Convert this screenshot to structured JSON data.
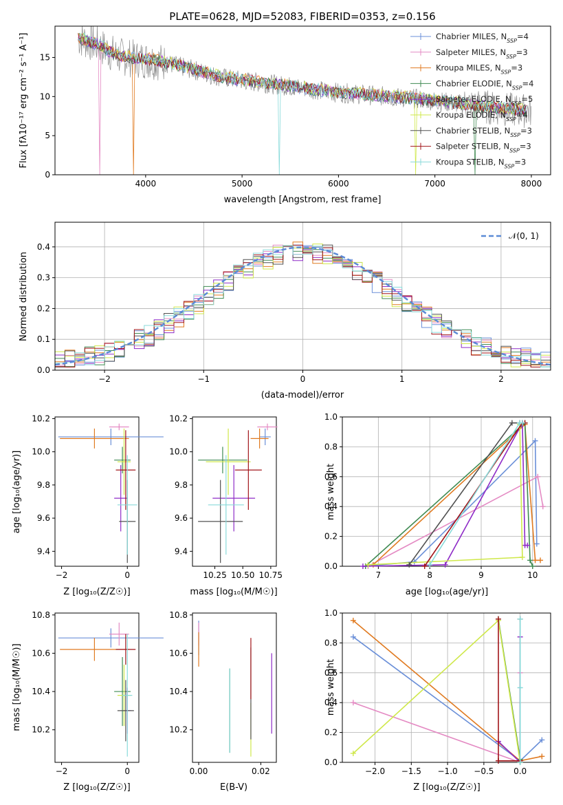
{
  "colors": {
    "chabrier_miles": "#6a8fd8",
    "salpeter_miles": "#e48ac3",
    "kroupa_miles": "#e07a20",
    "chabrier_elodie": "#3f8a52",
    "salpeter_elodie": "#8e2bc7",
    "kroupa_elodie": "#cfe84a",
    "chabrier_stelib": "#505050",
    "salpeter_stelib": "#a11418",
    "kroupa_stelib": "#88dada",
    "spectrum": "#8c8c8c",
    "normal_curve": "#5b8ad6"
  },
  "chart_data": [
    {
      "type": "line",
      "title": "PLATE=0628, MJD=52083, FIBERID=0353, z=0.156",
      "xlabel": "wavelength [Angstrom, rest frame]",
      "ylabel": "Flux [fλ10⁻¹⁷ erg cm⁻² s⁻¹ A⁻¹]",
      "xlim": [
        3060,
        8200
      ],
      "ylim": [
        0,
        19
      ],
      "xticks": [
        "4000",
        "5000",
        "6000",
        "7000",
        "8000"
      ],
      "yticks": [
        "0",
        "5",
        "10",
        "15"
      ],
      "legend": [
        "Chabrier MILES, N_SSP=4",
        "Salpeter MILES, N_SSP=3",
        "Kroupa MILES, N_SSP=3",
        "Chabrier ELODIE, N_SSP=4",
        "Salpeter ELODIE, N_SSP=5",
        "Kroupa ELODIE, N_SSP=4",
        "Chabrier STELIB, N_SSP=3",
        "Salpeter STELIB, N_SSP=3",
        "Kroupa STELIB, N_SSP=3"
      ],
      "legend_location": "upper right",
      "continuum": {
        "x": [
          3300,
          3500,
          3700,
          3900,
          4100,
          4300,
          4500,
          4700,
          4900,
          5100,
          5300,
          5500,
          5700,
          5900,
          6100,
          6300,
          6500,
          6700,
          6900,
          7100,
          7300,
          7500,
          7700,
          7900
        ],
        "y": [
          17.5,
          16.6,
          15.2,
          14.8,
          14.6,
          14.0,
          13.4,
          12.7,
          12.2,
          11.9,
          11.6,
          11.3,
          11.0,
          10.6,
          10.4,
          10.2,
          10.0,
          9.8,
          9.6,
          9.3,
          9.0,
          8.7,
          8.4,
          8.2
        ]
      }
    },
    {
      "type": "bar",
      "xlabel": "(data-model)/error",
      "ylabel": "Normed distribution",
      "xlim": [
        -2.5,
        2.5
      ],
      "ylim": [
        0,
        0.48
      ],
      "xticks": [
        "−2",
        "−1",
        "0",
        "1",
        "2"
      ],
      "yticks": [
        "0.0",
        "0.1",
        "0.2",
        "0.3",
        "0.4"
      ],
      "legend": [
        "𝒩(0, 1)"
      ],
      "legend_location": "upper right",
      "bin_width": 0.1,
      "grid": true
    },
    {
      "type": "scatter",
      "xlabel": "Z [log₁₀(Z/Z☉)]",
      "ylabel": "age [log₁₀(age/yr)]",
      "xlim": [
        -2.2,
        0.35
      ],
      "ylim": [
        9.31,
        10.21
      ],
      "xticks": [
        "−2",
        "0"
      ],
      "yticks": [
        "9.4",
        "9.6",
        "9.8",
        "10.0",
        "10.2"
      ],
      "points": [
        {
          "x": -0.5,
          "y": 10.09,
          "xerr": 1.6,
          "yerr": 0.05
        },
        {
          "x": -0.25,
          "y": 10.15,
          "xerr": 0.3,
          "yerr": 0.02
        },
        {
          "x": -1.0,
          "y": 10.08,
          "xerr": 1.05,
          "yerr": 0.06
        },
        {
          "x": -0.15,
          "y": 9.95,
          "xerr": 0.25,
          "yerr": 0.08
        },
        {
          "x": -0.2,
          "y": 9.72,
          "xerr": 0.2,
          "yerr": 0.2
        },
        {
          "x": -0.1,
          "y": 9.94,
          "xerr": 0.2,
          "yerr": 0.2
        },
        {
          "x": 0.0,
          "y": 9.58,
          "xerr": 0.25,
          "yerr": 0.25
        },
        {
          "x": -0.05,
          "y": 9.89,
          "xerr": 0.3,
          "yerr": 0.24
        },
        {
          "x": 0.0,
          "y": 9.68,
          "xerr": 0.3,
          "yerr": 0.3
        }
      ]
    },
    {
      "type": "scatter",
      "xlabel": "mass [log₁₀(M/M☉)]",
      "ylabel": "",
      "xlim": [
        10.05,
        10.8
      ],
      "ylim": [
        9.31,
        10.21
      ],
      "xticks": [
        "10.25",
        "10.50",
        "10.75"
      ],
      "yticks": [
        "9.4",
        "9.6",
        "9.8",
        "10.0",
        "10.2"
      ],
      "points": [
        {
          "x": 10.7,
          "y": 10.09,
          "xerr": 0.05,
          "yerr": 0.05
        },
        {
          "x": 10.72,
          "y": 10.15,
          "xerr": 0.09,
          "yerr": 0.02
        },
        {
          "x": 10.65,
          "y": 10.08,
          "xerr": 0.08,
          "yerr": 0.06
        },
        {
          "x": 10.32,
          "y": 9.95,
          "xerr": 0.22,
          "yerr": 0.08
        },
        {
          "x": 10.42,
          "y": 9.72,
          "xerr": 0.19,
          "yerr": 0.2
        },
        {
          "x": 10.37,
          "y": 9.94,
          "xerr": 0.2,
          "yerr": 0.2
        },
        {
          "x": 10.3,
          "y": 9.58,
          "xerr": 0.2,
          "yerr": 0.25
        },
        {
          "x": 10.55,
          "y": 9.89,
          "xerr": 0.12,
          "yerr": 0.24
        },
        {
          "x": 10.35,
          "y": 9.68,
          "xerr": 0.16,
          "yerr": 0.3
        }
      ]
    },
    {
      "type": "line",
      "xlabel": "age [log₁₀(age/yr)]",
      "ylabel": "mass weight",
      "xlim": [
        6.3,
        10.35
      ],
      "ylim": [
        0,
        1
      ],
      "xticks": [
        "7",
        "8",
        "9",
        "10"
      ],
      "yticks": [
        "0.0",
        "0.2",
        "0.4",
        "0.6",
        "0.8",
        "1.0"
      ],
      "grid": true,
      "series": [
        {
          "x": [
            6.75,
            7.7,
            10.05,
            10.08
          ],
          "y": [
            0.0,
            0.03,
            0.84,
            0.15
          ]
        },
        {
          "x": [
            6.8,
            10.1,
            10.2
          ],
          "y": [
            0.0,
            0.6,
            0.4
          ]
        },
        {
          "x": [
            6.9,
            9.85,
            10.05,
            10.15
          ],
          "y": [
            0.01,
            0.95,
            0.04,
            0.04
          ]
        },
        {
          "x": [
            6.75,
            9.85,
            9.95,
            10.0
          ],
          "y": [
            0.0,
            0.96,
            0.04,
            0.0
          ]
        },
        {
          "x": [
            6.7,
            8.3,
            9.8,
            9.85,
            9.9
          ],
          "y": [
            0.0,
            0.01,
            0.96,
            0.14,
            0.14
          ]
        },
        {
          "x": [
            6.8,
            9.8,
            9.75
          ],
          "y": [
            0.01,
            0.06,
            0.95
          ]
        },
        {
          "x": [
            7.6,
            9.6,
            9.75
          ],
          "y": [
            0.01,
            0.96,
            0.96
          ]
        },
        {
          "x": [
            7.9,
            9.8,
            9.85
          ],
          "y": [
            0.0,
            0.96,
            0.96
          ]
        },
        {
          "x": [
            8.0,
            9.75,
            9.8
          ],
          "y": [
            0.01,
            0.96,
            0.96
          ]
        }
      ]
    },
    {
      "type": "scatter",
      "xlabel": "Z [log₁₀(Z/Z☉)]",
      "ylabel": "mass [log₁₀(M/M☉)]",
      "xlim": [
        -2.2,
        0.35
      ],
      "ylim": [
        10.03,
        10.81
      ],
      "xticks": [
        "−2",
        "0"
      ],
      "yticks": [
        "10.2",
        "10.4",
        "10.6",
        "10.8"
      ],
      "points": [
        {
          "x": -0.5,
          "y": 10.68,
          "xerr": 1.6,
          "yerr": 0.05
        },
        {
          "x": -0.25,
          "y": 10.7,
          "xerr": 0.3,
          "yerr": 0.06
        },
        {
          "x": -1.0,
          "y": 10.62,
          "xerr": 1.05,
          "yerr": 0.06
        },
        {
          "x": -0.15,
          "y": 10.4,
          "xerr": 0.25,
          "yerr": 0.18
        },
        {
          "x": 0.0,
          "y": 10.3,
          "xerr": 0.12,
          "yerr": 0.12
        },
        {
          "x": -0.1,
          "y": 10.38,
          "xerr": 0.2,
          "yerr": 0.16
        },
        {
          "x": -0.05,
          "y": 10.3,
          "xerr": 0.25,
          "yerr": 0.16
        },
        {
          "x": -0.05,
          "y": 10.62,
          "xerr": 0.3,
          "yerr": 0.08
        },
        {
          "x": 0.0,
          "y": 10.38,
          "xerr": 0.15,
          "yerr": 0.32
        }
      ]
    },
    {
      "type": "scatter",
      "xlabel": "E(B-V)",
      "ylabel": "",
      "xlim": [
        -0.002,
        0.025
      ],
      "ylim": [
        10.03,
        10.81
      ],
      "xticks": [
        "0.00",
        "0.02"
      ],
      "yticks": [
        "10.2",
        "10.4",
        "10.6",
        "10.8"
      ],
      "points": [
        {
          "x": 0.0,
          "y": 10.68,
          "yerr": 0.09
        },
        {
          "x": 0.0,
          "y": 10.7,
          "yerr": 0.06
        },
        {
          "x": 0.0,
          "y": 10.62,
          "yerr": 0.09
        },
        {
          "x": 0.01,
          "y": 10.3,
          "yerr": 0.22
        },
        {
          "x": 0.0235,
          "y": 10.39,
          "yerr": 0.21
        },
        {
          "x": 0.0168,
          "y": 10.2,
          "yerr": 0.14
        },
        {
          "x": 0.0168,
          "y": 10.39,
          "yerr": 0.24
        },
        {
          "x": 0.0168,
          "y": 10.52,
          "yerr": 0.16
        },
        {
          "x": 0.01,
          "y": 10.3,
          "yerr": 0.22
        }
      ]
    },
    {
      "type": "line",
      "xlabel": "Z [log₁₀(Z/Z☉)]",
      "ylabel": "mass weight",
      "xlim": [
        -2.45,
        0.42
      ],
      "ylim": [
        0,
        1
      ],
      "xticks": [
        "−2.0",
        "−1.5",
        "−1.0",
        "−0.5",
        "0.0"
      ],
      "yticks": [
        "0.0",
        "0.2",
        "0.4",
        "0.6",
        "0.8",
        "1.0"
      ],
      "grid": true,
      "series": [
        {
          "x": [
            -2.3,
            0.0,
            0.3
          ],
          "y": [
            0.84,
            0.01,
            0.15
          ]
        },
        {
          "x": [
            -2.3,
            0.0,
            0.0
          ],
          "y": [
            0.4,
            0.0,
            0.6
          ]
        },
        {
          "x": [
            -2.3,
            0.0,
            0.3
          ],
          "y": [
            0.95,
            0.01,
            0.04
          ]
        },
        {
          "x": [
            -0.3,
            0.0,
            0.0
          ],
          "y": [
            0.96,
            0.02,
            0.0
          ]
        },
        {
          "x": [
            -0.3,
            0.0,
            0.0
          ],
          "y": [
            0.14,
            0.0,
            0.84
          ]
        },
        {
          "x": [
            -2.3,
            -0.3,
            0.0
          ],
          "y": [
            0.06,
            0.95,
            0.0
          ]
        },
        {
          "x": [
            -0.3,
            0.0,
            0.0
          ],
          "y": [
            0.01,
            0.01,
            0.96
          ]
        },
        {
          "x": [
            -0.3,
            -0.3,
            0.0
          ],
          "y": [
            0.96,
            0.01,
            0.01
          ]
        },
        {
          "x": [
            0.0,
            0.0,
            0.0
          ],
          "y": [
            0.0,
            0.5,
            0.96
          ]
        }
      ]
    }
  ]
}
